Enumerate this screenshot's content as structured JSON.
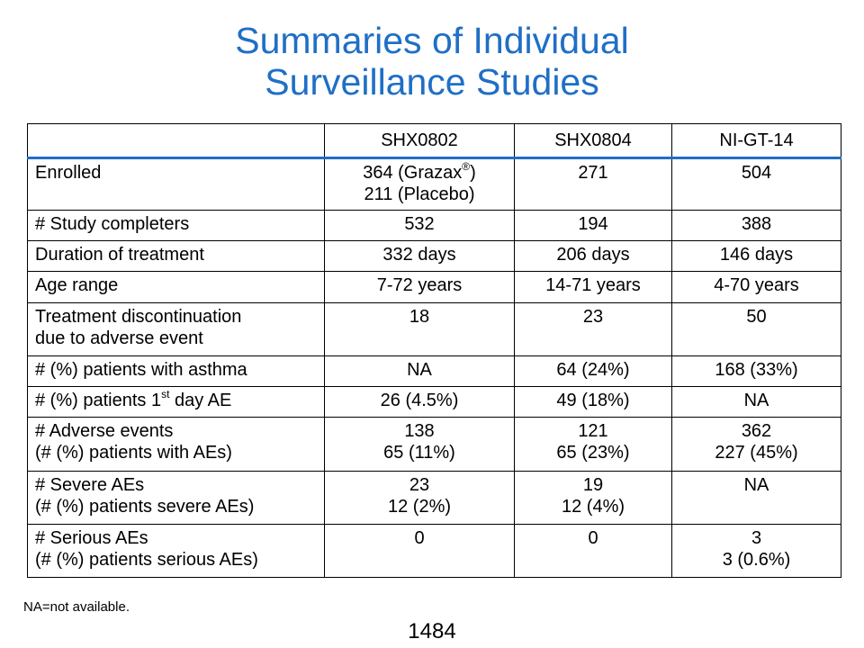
{
  "title": {
    "line1": "Summaries of Individual",
    "line2": "Surveillance Studies"
  },
  "table": {
    "headers": [
      "",
      "SHX0802",
      "SHX0804",
      "NI-GT-14"
    ],
    "rows": [
      {
        "label": [
          "Enrolled"
        ],
        "cells": [
          [
            "364 (Grazax",
            "211 (Placebo)"
          ],
          [
            "271"
          ],
          [
            "504"
          ]
        ],
        "sup": "®",
        "sup_after": ")"
      },
      {
        "label": [
          "# Study completers"
        ],
        "cells": [
          [
            "532"
          ],
          [
            "194"
          ],
          [
            "388"
          ]
        ]
      },
      {
        "label": [
          "Duration of treatment"
        ],
        "cells": [
          [
            "332 days"
          ],
          [
            "206 days"
          ],
          [
            "146 days"
          ]
        ]
      },
      {
        "label": [
          "Age range"
        ],
        "cells": [
          [
            "7-72 years"
          ],
          [
            "14-71 years"
          ],
          [
            "4-70 years"
          ]
        ]
      },
      {
        "label": [
          "Treatment discontinuation",
          "due to adverse event"
        ],
        "cells": [
          [
            "18"
          ],
          [
            "23"
          ],
          [
            "50"
          ]
        ]
      },
      {
        "label": [
          "# (%) patients with asthma"
        ],
        "cells": [
          [
            "NA"
          ],
          [
            "64 (24%)"
          ],
          [
            "168 (33%)"
          ]
        ]
      },
      {
        "label_pre": "# (%) patients 1",
        "label_sup": "st",
        "label_post": " day AE",
        "cells": [
          [
            "26 (4.5%)"
          ],
          [
            "49 (18%)"
          ],
          [
            "NA"
          ]
        ]
      },
      {
        "label": [
          "# Adverse events",
          "(# (%) patients with AEs)"
        ],
        "cells": [
          [
            "138",
            "65 (11%)"
          ],
          [
            "121",
            "65 (23%)"
          ],
          [
            "362",
            "227 (45%)"
          ]
        ]
      },
      {
        "label": [
          "# Severe AEs",
          "(# (%) patients severe AEs)"
        ],
        "cells": [
          [
            "23",
            "12 (2%)"
          ],
          [
            "19",
            "12 (4%)"
          ],
          [
            "NA"
          ]
        ]
      },
      {
        "label": [
          "# Serious AEs",
          "(# (%) patients serious AEs)"
        ],
        "cells": [
          [
            "0"
          ],
          [
            "0"
          ],
          [
            "3",
            "3 (0.6%)"
          ]
        ]
      }
    ]
  },
  "footnote": "NA=not available.",
  "page_number": "1484"
}
